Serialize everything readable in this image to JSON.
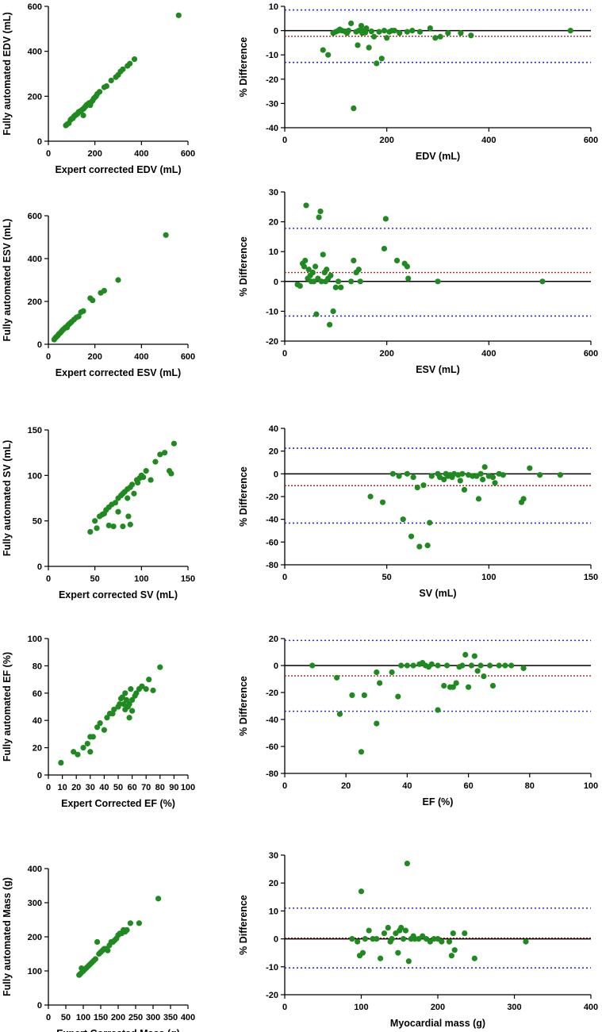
{
  "colors": {
    "points": "#1f8a1f",
    "zero_line": "#000000",
    "mean_line": "#b22222",
    "limit_lines": "#2b2bd4"
  },
  "chart_data": [
    {
      "id": "edv-corr",
      "type": "scatter",
      "xlabel": "Expert corrected EDV (mL)",
      "ylabel": "Fully automated EDV (mL)",
      "xlim": [
        0,
        600
      ],
      "ylim": [
        0,
        600
      ],
      "xticks": [
        0,
        200,
        400,
        600
      ],
      "yticks": [
        0,
        200,
        400,
        600
      ],
      "x": [
        75,
        80,
        88,
        95,
        100,
        105,
        110,
        115,
        120,
        125,
        130,
        135,
        140,
        145,
        150,
        152,
        155,
        160,
        165,
        170,
        175,
        180,
        185,
        190,
        195,
        200,
        205,
        210,
        220,
        240,
        250,
        270,
        290,
        300,
        310,
        320,
        340,
        350,
        370,
        560
      ],
      "y": [
        70,
        75,
        80,
        95,
        100,
        102,
        110,
        115,
        118,
        122,
        130,
        133,
        135,
        140,
        115,
        145,
        150,
        155,
        162,
        165,
        170,
        160,
        175,
        180,
        190,
        195,
        200,
        210,
        220,
        240,
        245,
        270,
        285,
        295,
        310,
        320,
        335,
        345,
        365,
        560
      ]
    },
    {
      "id": "edv-ba",
      "type": "scatter",
      "xlabel": "EDV (mL)",
      "ylabel": "% Difference",
      "xlim": [
        0,
        600
      ],
      "ylim": [
        -40,
        10
      ],
      "xticks": [
        0,
        200,
        400,
        600
      ],
      "yticks": [
        -40,
        -30,
        -20,
        -10,
        0,
        10
      ],
      "lines": {
        "zero": 0,
        "mean": -2.3,
        "upper": 8.5,
        "lower": -13.1
      },
      "x": [
        75,
        85,
        95,
        100,
        105,
        108,
        112,
        118,
        122,
        125,
        130,
        135,
        140,
        143,
        145,
        148,
        150,
        152,
        155,
        158,
        160,
        165,
        170,
        175,
        180,
        185,
        190,
        195,
        200,
        205,
        210,
        215,
        225,
        240,
        250,
        265,
        285,
        295,
        305,
        320,
        345,
        365,
        560
      ],
      "y": [
        -8,
        -10,
        -1,
        -0.5,
        0,
        0.5,
        0,
        -0.3,
        -1,
        0,
        3,
        -32,
        -0.5,
        -6,
        0,
        0,
        2,
        -1,
        0,
        -0.8,
        1,
        -7,
        -0.3,
        -2.5,
        -13.5,
        -0.5,
        -11.5,
        0,
        -3,
        -0.5,
        0,
        0,
        -1,
        -0.5,
        0,
        -0.5,
        1,
        -3,
        -2.5,
        -1,
        -1,
        -2,
        0
      ]
    },
    {
      "id": "esv-corr",
      "type": "scatter",
      "xlabel": "Expert corrected ESV (mL)",
      "ylabel": "Fully automated ESV (mL)",
      "xlim": [
        0,
        600
      ],
      "ylim": [
        0,
        600
      ],
      "xticks": [
        0,
        200,
        400,
        600
      ],
      "yticks": [
        0,
        200,
        400,
        600
      ],
      "x": [
        25,
        30,
        35,
        40,
        45,
        50,
        55,
        60,
        65,
        70,
        75,
        80,
        85,
        90,
        95,
        100,
        110,
        120,
        130,
        140,
        150,
        180,
        190,
        225,
        240,
        300,
        505
      ],
      "y": [
        22,
        30,
        35,
        40,
        48,
        52,
        58,
        65,
        70,
        75,
        80,
        78,
        90,
        95,
        100,
        105,
        115,
        125,
        130,
        150,
        155,
        215,
        205,
        240,
        250,
        300,
        510
      ]
    },
    {
      "id": "esv-ba",
      "type": "scatter",
      "xlabel": "ESV (mL)",
      "ylabel": "% Difference",
      "xlim": [
        0,
        600
      ],
      "ylim": [
        -20,
        30
      ],
      "xticks": [
        0,
        200,
        400,
        600
      ],
      "yticks": [
        -20,
        -10,
        0,
        10,
        20,
        30
      ],
      "lines": {
        "zero": 0,
        "mean": 3.0,
        "upper": 17.8,
        "lower": -11.6
      },
      "x": [
        25,
        30,
        35,
        38,
        40,
        42,
        45,
        47,
        50,
        52,
        55,
        57,
        60,
        62,
        65,
        67,
        70,
        72,
        75,
        78,
        80,
        82,
        85,
        88,
        90,
        95,
        100,
        105,
        110,
        130,
        135,
        140,
        145,
        148,
        195,
        198,
        220,
        235,
        240,
        242,
        300,
        505
      ],
      "y": [
        -1,
        -1.5,
        6,
        5,
        7,
        25.5,
        1,
        4,
        2,
        0,
        3,
        0,
        5,
        -11,
        1,
        21.5,
        23.5,
        0,
        9,
        3,
        0,
        4,
        1,
        -14.5,
        2,
        -10,
        -2,
        0,
        -2,
        0,
        7,
        3,
        4,
        0,
        11,
        21,
        7,
        6,
        5,
        1,
        0,
        0
      ]
    },
    {
      "id": "sv-corr",
      "type": "scatter",
      "xlabel": "Expert corrected SV (mL)",
      "ylabel": "Fully automated SV (mL)",
      "xlim": [
        0,
        150
      ],
      "ylim": [
        0,
        150
      ],
      "xticks": [
        0,
        50,
        100,
        150
      ],
      "yticks": [
        0,
        50,
        100,
        150
      ],
      "x": [
        45,
        50,
        52,
        55,
        58,
        60,
        62,
        65,
        65,
        68,
        70,
        72,
        75,
        75,
        78,
        80,
        80,
        82,
        85,
        85,
        86,
        88,
        88,
        90,
        92,
        95,
        96,
        98,
        100,
        102,
        105,
        110,
        115,
        120,
        125,
        130,
        132,
        135
      ],
      "y": [
        38,
        50,
        42,
        55,
        57,
        58,
        62,
        45,
        65,
        68,
        44,
        70,
        75,
        60,
        78,
        80,
        44,
        82,
        85,
        75,
        55,
        87,
        46,
        90,
        80,
        95,
        92,
        97,
        100,
        98,
        105,
        95,
        115,
        123,
        125,
        105,
        102,
        135
      ]
    },
    {
      "id": "sv-ba",
      "type": "scatter",
      "xlabel": "SV (mL)",
      "ylabel": "% Difference",
      "xlim": [
        0,
        150
      ],
      "ylim": [
        -80,
        40
      ],
      "xticks": [
        0,
        50,
        100,
        150
      ],
      "yticks": [
        -80,
        -60,
        -40,
        -20,
        0,
        20,
        40
      ],
      "lines": {
        "zero": 0,
        "mean": -10.4,
        "upper": 22.5,
        "lower": -43.3
      },
      "x": [
        42,
        48,
        53,
        56,
        58,
        60,
        62,
        63,
        65,
        66,
        68,
        70,
        71,
        72,
        75,
        76,
        78,
        79,
        80,
        81,
        82,
        83,
        85,
        86,
        87,
        88,
        90,
        92,
        94,
        95,
        96,
        97,
        98,
        100,
        102,
        103,
        105,
        107,
        116,
        117,
        120,
        125,
        135
      ],
      "y": [
        -20,
        -25,
        0,
        -2,
        -40,
        0,
        -55,
        -3,
        -12,
        -64,
        -10,
        -63,
        -43,
        -2,
        0,
        -3,
        -5,
        0,
        -2,
        -1,
        -3,
        0,
        -1,
        -6,
        0,
        -14,
        -1,
        -2,
        -2,
        -22,
        0,
        -5,
        6,
        -2,
        -3,
        -8,
        0,
        -1,
        -25,
        -22,
        5,
        -1,
        -1
      ]
    },
    {
      "id": "ef-corr",
      "type": "scatter",
      "xlabel": "Expert Corrected EF (%)",
      "ylabel": "Fully automated EF (%)",
      "xlim": [
        0,
        100
      ],
      "ylim": [
        0,
        100
      ],
      "xticks": [
        0,
        10,
        20,
        30,
        40,
        50,
        60,
        70,
        80,
        90,
        100
      ],
      "yticks": [
        0,
        20,
        40,
        60,
        80,
        100
      ],
      "x": [
        9,
        18,
        21,
        25,
        28,
        30,
        30,
        32,
        35,
        37,
        40,
        42,
        44,
        46,
        47,
        50,
        51,
        52,
        53,
        54,
        55,
        55,
        56,
        57,
        58,
        58,
        59,
        60,
        60,
        62,
        63,
        65,
        67,
        70,
        72,
        75,
        80
      ],
      "y": [
        9,
        17,
        15,
        20,
        23,
        17,
        28,
        28,
        35,
        38,
        33,
        42,
        45,
        45,
        48,
        50,
        52,
        56,
        57,
        52,
        48,
        60,
        55,
        50,
        52,
        42,
        63,
        55,
        47,
        58,
        60,
        63,
        65,
        63,
        70,
        62,
        79
      ]
    },
    {
      "id": "ef-ba",
      "type": "scatter",
      "xlabel": "EF (%)",
      "ylabel": "% Difference",
      "xlim": [
        0,
        100
      ],
      "ylim": [
        -80,
        20
      ],
      "xticks": [
        0,
        20,
        40,
        60,
        80,
        100
      ],
      "yticks": [
        -80,
        -60,
        -40,
        -20,
        0,
        20
      ],
      "lines": {
        "zero": 0,
        "mean": -7.7,
        "upper": 18.6,
        "lower": -33.9
      },
      "x": [
        9,
        17,
        18,
        22,
        25,
        26,
        30,
        30,
        31,
        35,
        37,
        38,
        40,
        42,
        44,
        45,
        46,
        47,
        48,
        50,
        50,
        52,
        53,
        54,
        55,
        56,
        57,
        58,
        59,
        60,
        61,
        62,
        63,
        64,
        65,
        67,
        68,
        70,
        72,
        74,
        78
      ],
      "y": [
        0,
        -9,
        -36,
        -22,
        -64,
        -22,
        -43,
        -5,
        -13,
        -5,
        -23,
        0,
        0,
        0,
        1,
        2,
        0,
        -1,
        1,
        -33,
        0,
        -15,
        0,
        -16,
        -16,
        -13,
        -1,
        0,
        8,
        -16,
        0,
        7,
        -4,
        0,
        -8,
        0,
        -15,
        0,
        0,
        0,
        -2
      ]
    },
    {
      "id": "mass-corr",
      "type": "scatter",
      "xlabel": "Expert Corrected Mass (g)",
      "ylabel": "Fully automated Mass (g)",
      "xlim": [
        0,
        400
      ],
      "ylim": [
        0,
        400
      ],
      "xticks": [
        0,
        50,
        100,
        150,
        200,
        250,
        300,
        350,
        400
      ],
      "yticks": [
        0,
        100,
        200,
        300,
        400
      ],
      "x": [
        88,
        92,
        95,
        98,
        100,
        105,
        110,
        115,
        120,
        125,
        130,
        135,
        140,
        145,
        150,
        155,
        160,
        165,
        170,
        175,
        180,
        185,
        190,
        195,
        200,
        205,
        210,
        215,
        220,
        225,
        235,
        260,
        315
      ],
      "y": [
        88,
        92,
        108,
        98,
        100,
        105,
        110,
        115,
        120,
        125,
        130,
        135,
        185,
        150,
        155,
        160,
        165,
        165,
        160,
        175,
        185,
        185,
        190,
        195,
        205,
        210,
        210,
        220,
        215,
        220,
        240,
        240,
        312
      ]
    },
    {
      "id": "mass-ba",
      "type": "scatter",
      "xlabel": "Myocardial mass (g)",
      "ylabel": "% Difference",
      "xlim": [
        0,
        400
      ],
      "ylim": [
        -20,
        30
      ],
      "xticks": [
        0,
        100,
        200,
        300,
        400
      ],
      "yticks": [
        -20,
        -10,
        0,
        10,
        20,
        30
      ],
      "lines": {
        "zero": 0,
        "mean": 0.3,
        "upper": 11.0,
        "lower": -10.4
      },
      "x": [
        88,
        95,
        98,
        100,
        102,
        105,
        110,
        115,
        120,
        125,
        130,
        135,
        138,
        140,
        145,
        148,
        150,
        152,
        155,
        158,
        160,
        162,
        165,
        168,
        170,
        175,
        180,
        185,
        190,
        195,
        200,
        205,
        215,
        218,
        220,
        222,
        235,
        248,
        315
      ],
      "y": [
        0,
        -1,
        -6,
        17,
        -5,
        0,
        3,
        0,
        0,
        -7,
        2,
        4,
        -1,
        0,
        2,
        -5,
        3,
        4,
        0,
        3,
        27,
        -8,
        0,
        1,
        0,
        0,
        1,
        0,
        -1,
        0,
        0,
        -1,
        -1,
        -6,
        2,
        -4,
        2,
        -7,
        -1
      ]
    }
  ]
}
